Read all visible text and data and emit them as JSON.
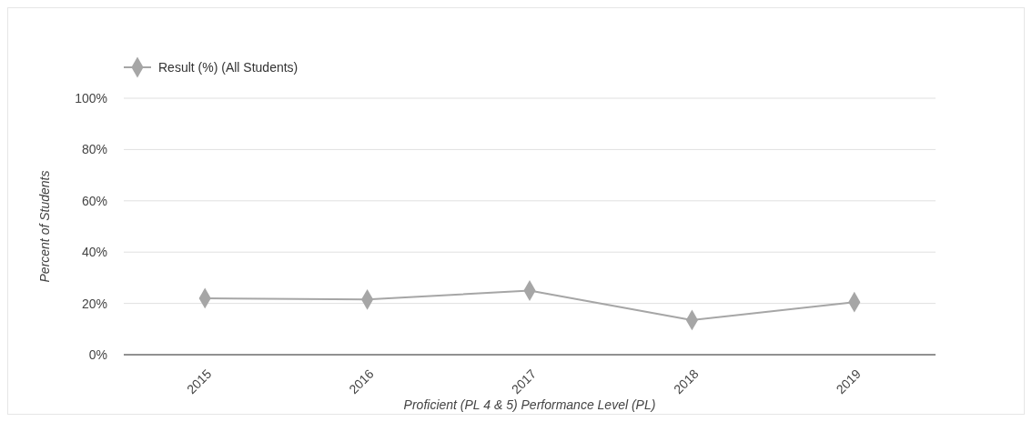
{
  "chart_data": {
    "type": "line",
    "xlabel": "Proficient (PL 4 & 5) Performance Level (PL)",
    "ylabel": "Percent of Students",
    "categories": [
      "2015",
      "2016",
      "2017",
      "2018",
      "2019"
    ],
    "series": [
      {
        "name": "Result (%) (All Students)",
        "color": "#a6a6a6",
        "values": [
          22,
          21.5,
          25,
          13.5,
          20.5
        ]
      }
    ],
    "ylim": [
      0,
      100
    ],
    "yticks": [
      {
        "value": 0,
        "label": "0%"
      },
      {
        "value": 20,
        "label": "20%"
      },
      {
        "value": 40,
        "label": "40%"
      },
      {
        "value": 60,
        "label": "60%"
      },
      {
        "value": 80,
        "label": "80%"
      },
      {
        "value": 100,
        "label": "100%"
      }
    ],
    "grid": "y",
    "legend": "top left",
    "marker": "diamond",
    "line_style": "solid"
  }
}
